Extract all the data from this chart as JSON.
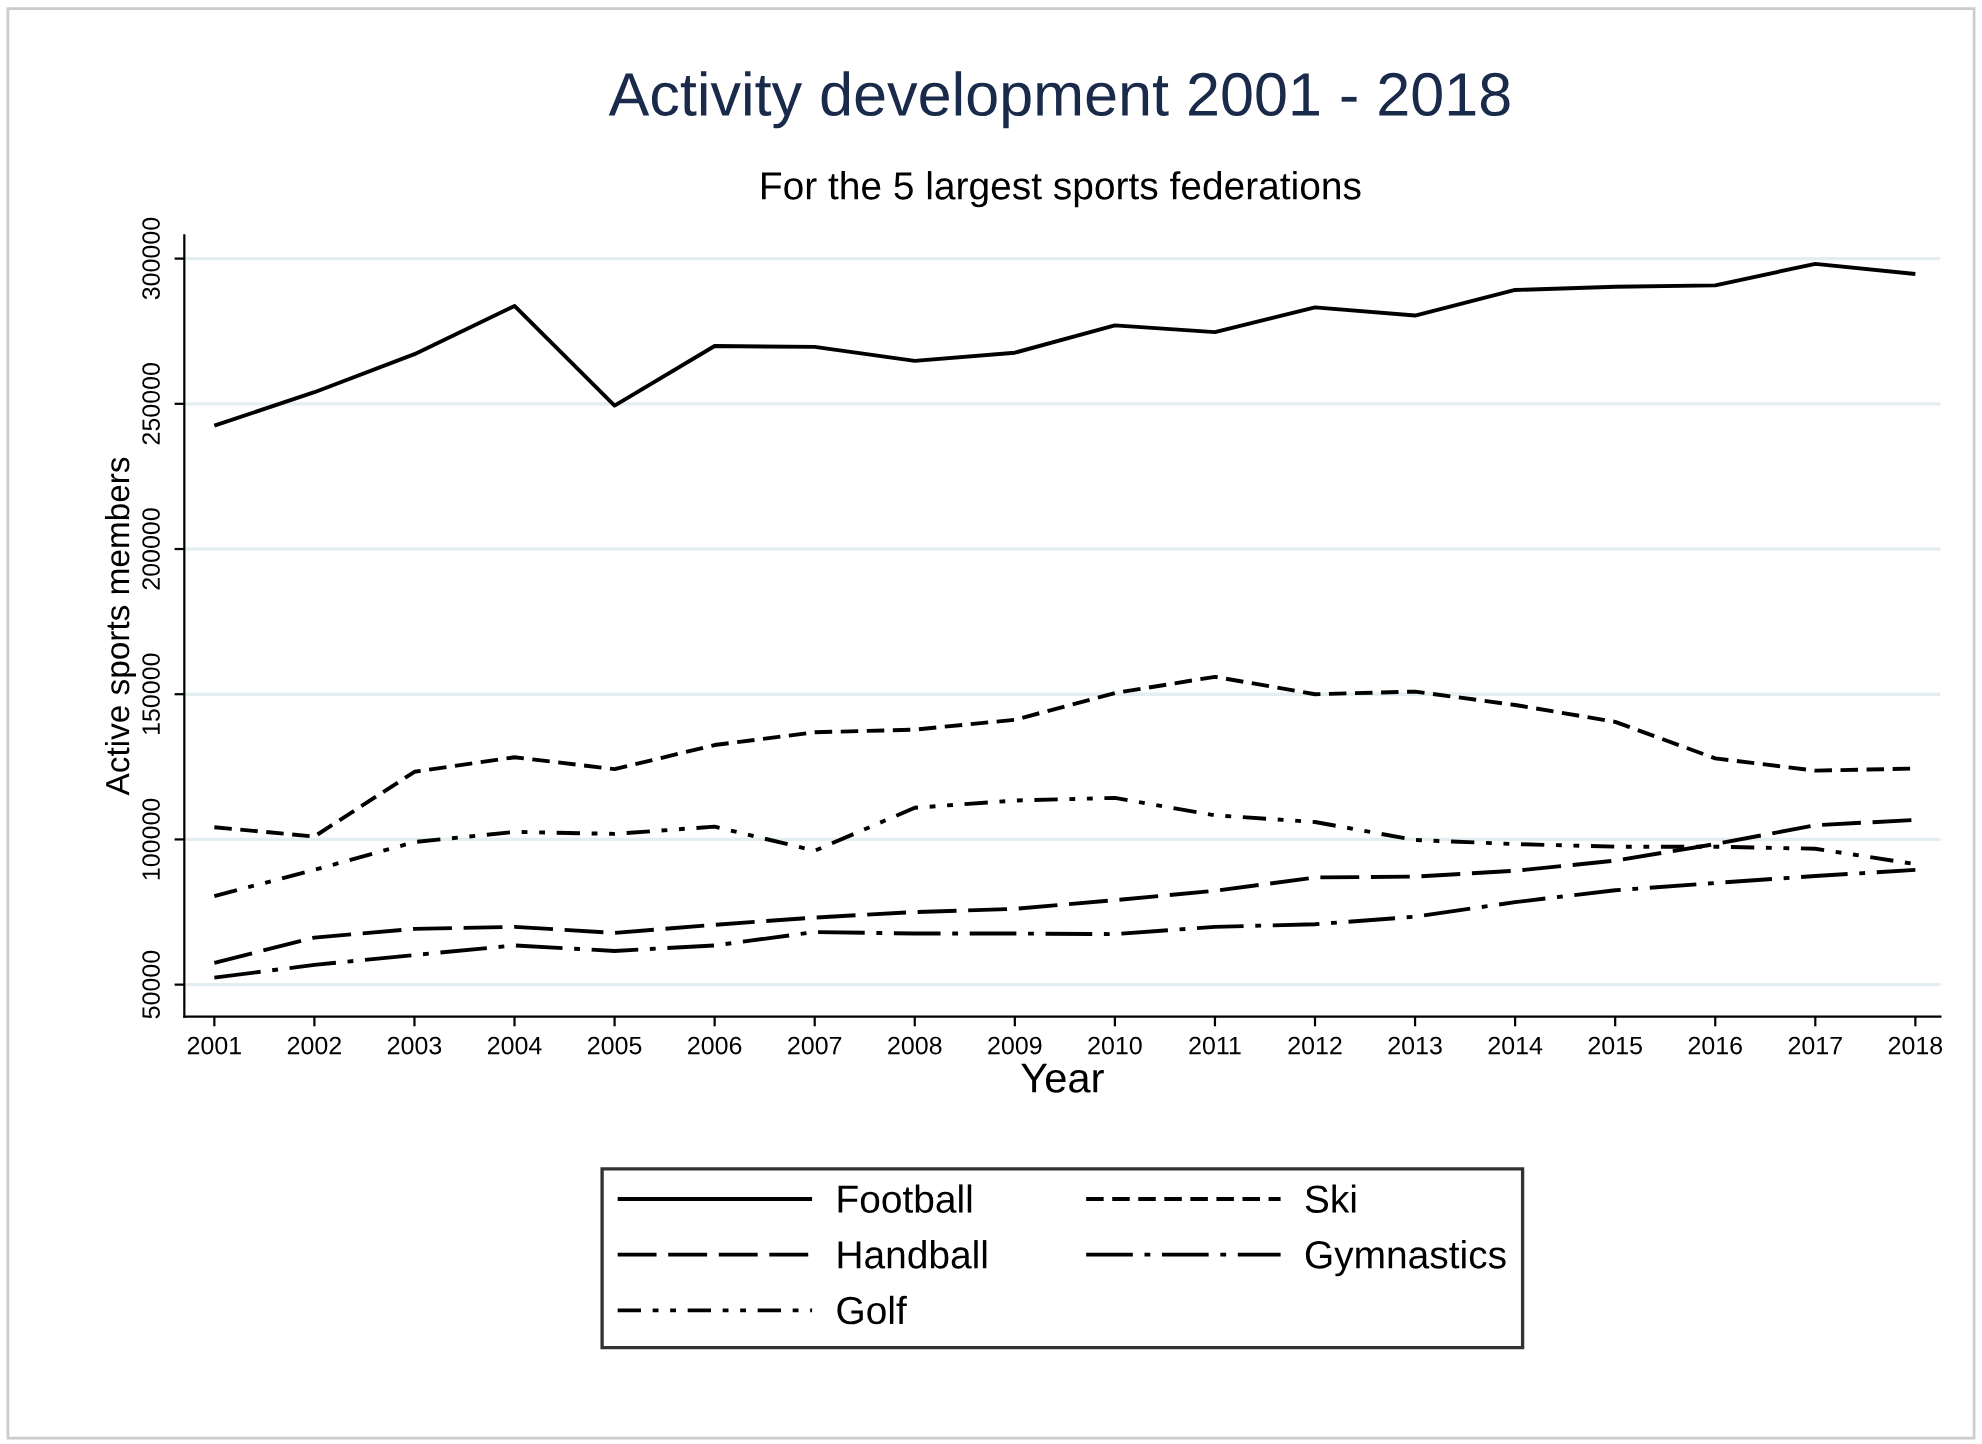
{
  "chart_data": {
    "type": "line",
    "title": "Activity development 2001 - 2018",
    "subtitle": "For the 5 largest sports federations",
    "xlabel": "Year",
    "ylabel": "Active sports members",
    "x": [
      2001,
      2002,
      2003,
      2004,
      2005,
      2006,
      2007,
      2008,
      2009,
      2010,
      2011,
      2012,
      2013,
      2014,
      2015,
      2016,
      2017,
      2018
    ],
    "series": [
      {
        "name": "Football",
        "color": "#000000",
        "line_style": "solid",
        "values": [
          242500,
          254000,
          267100,
          283700,
          249400,
          269900,
          269600,
          264800,
          267600,
          277000,
          274700,
          283200,
          280400,
          289200,
          290300,
          290800,
          298200,
          294700
        ]
      },
      {
        "name": "Ski",
        "color": "#000000",
        "line_style": "dashed",
        "values": [
          104200,
          101000,
          123300,
          128300,
          124200,
          132500,
          136900,
          137800,
          141200,
          150400,
          156000,
          150000,
          150900,
          146300,
          140500,
          127900,
          123700,
          124400
        ]
      },
      {
        "name": "Handball",
        "color": "#000000",
        "line_style": "longdash",
        "values": [
          57500,
          66200,
          69200,
          69900,
          67800,
          70600,
          73100,
          75000,
          76100,
          79100,
          82300,
          86900,
          87200,
          89200,
          92700,
          98400,
          104900,
          106700
        ]
      },
      {
        "name": "Gymnastics",
        "color": "#000000",
        "line_style": "longdashdot",
        "values": [
          52400,
          56800,
          60200,
          63500,
          61600,
          63500,
          68100,
          67600,
          67600,
          67400,
          69900,
          70800,
          73400,
          78400,
          82500,
          85000,
          87400,
          89500
        ]
      },
      {
        "name": "Golf",
        "color": "#000000",
        "line_style": "dashdotdot",
        "values": [
          80500,
          89500,
          99100,
          102600,
          101900,
          104400,
          96100,
          110900,
          113400,
          114300,
          108300,
          106000,
          99800,
          98400,
          97500,
          97500,
          96800,
          91500
        ]
      }
    ],
    "xlim": [
      2000.7,
      2018.25
    ],
    "ylim": [
      39000,
      308000
    ],
    "xticks": [
      2001,
      2002,
      2003,
      2004,
      2005,
      2006,
      2007,
      2008,
      2009,
      2010,
      2011,
      2012,
      2013,
      2014,
      2015,
      2016,
      2017,
      2018
    ],
    "yticks": [
      50000,
      100000,
      150000,
      200000,
      250000,
      300000
    ],
    "grid": "y",
    "legend": "bottom"
  }
}
